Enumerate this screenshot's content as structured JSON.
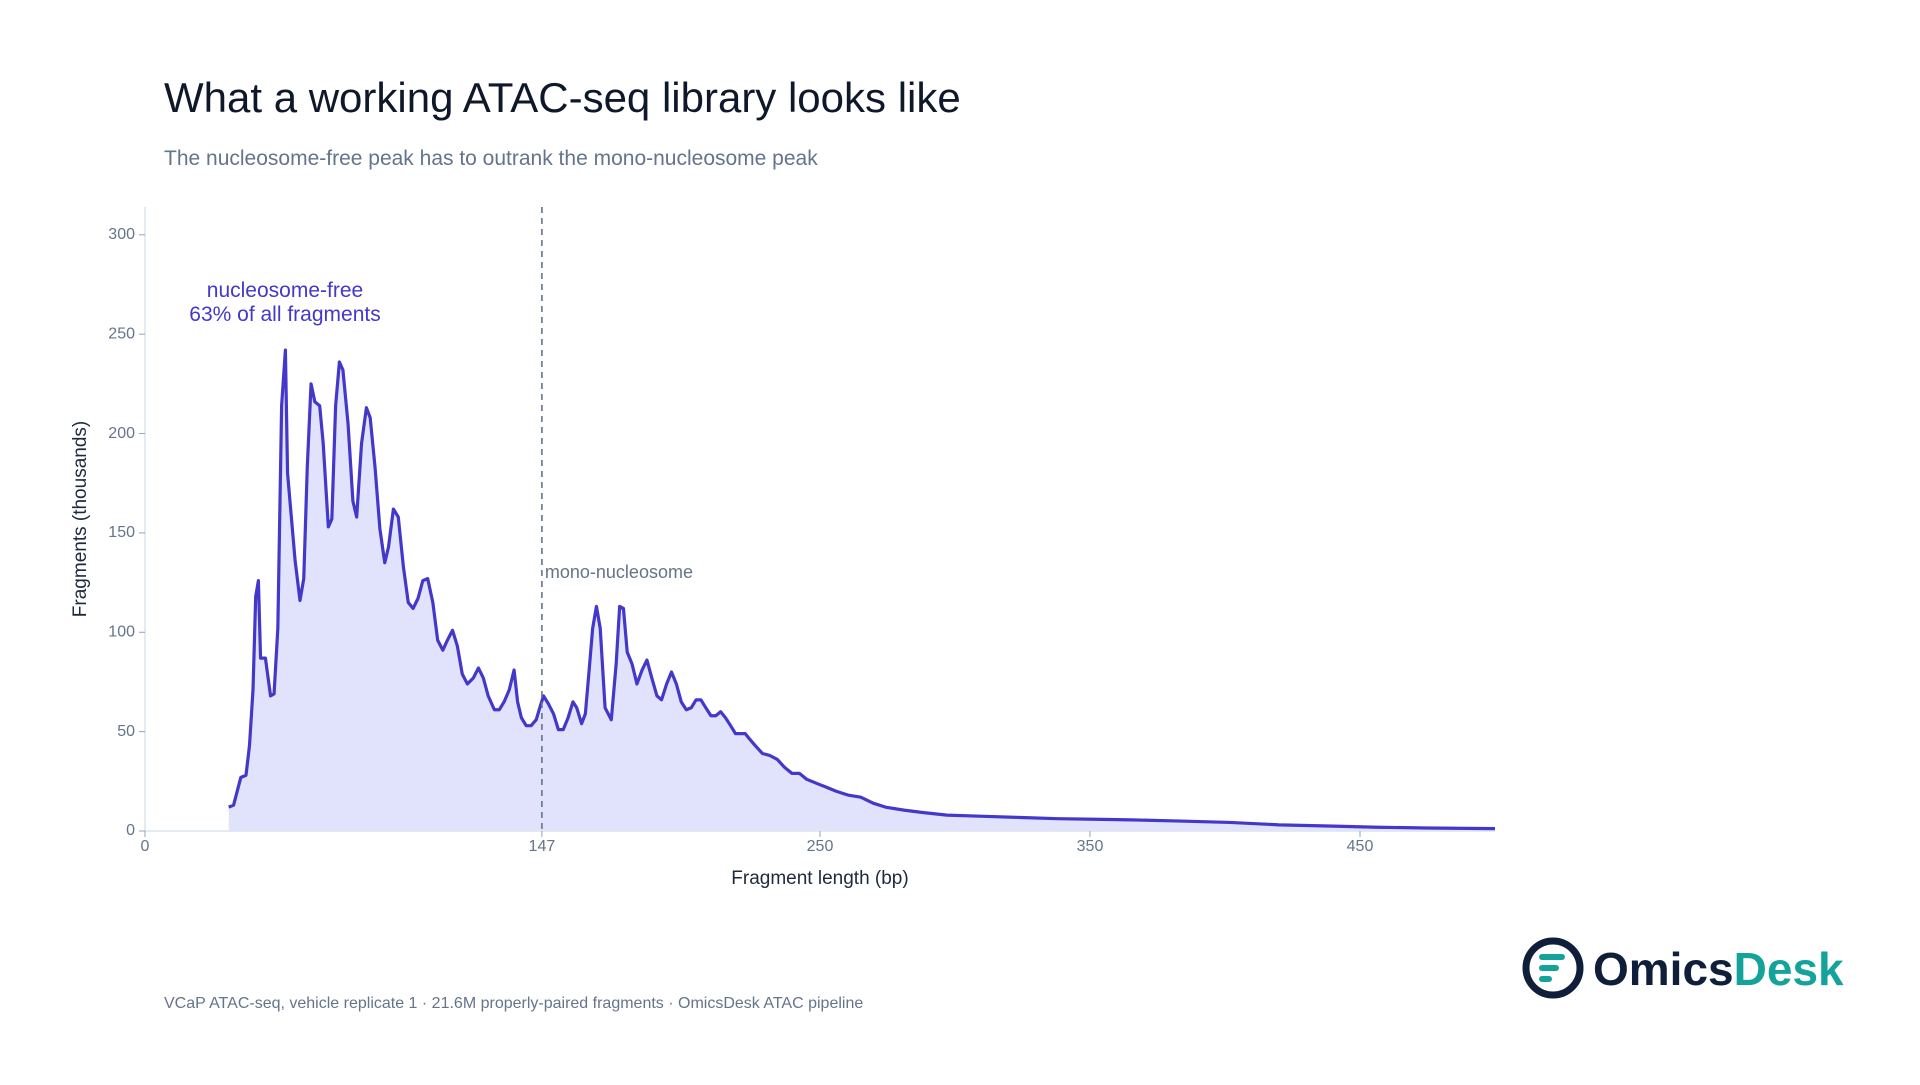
{
  "chart_data": {
    "type": "area",
    "title": "What a working ATAC-seq library looks like",
    "subtitle": "The nucleosome-free peak has to outrank the mono-nucleosome peak",
    "x_label": "Fragment length (bp)",
    "y_label": "Fragments (thousands)",
    "xlim": [
      0,
      500
    ],
    "ylim": [
      0,
      314
    ],
    "xticks": [
      0,
      147,
      250,
      350,
      450
    ],
    "yticks": [
      0,
      50,
      100,
      150,
      200,
      250,
      300
    ],
    "grid": false,
    "x": [
      31,
      32.8,
      35.5,
      37.4,
      38.7,
      40,
      41,
      42,
      42.8,
      44.6,
      46.5,
      47.8,
      49.2,
      50.6,
      52,
      52.8,
      54.2,
      55.6,
      57.4,
      58.8,
      60.1,
      61.5,
      62.9,
      64.7,
      66,
      67.9,
      69.2,
      70.6,
      72,
      73.3,
      75.2,
      77,
      78.4,
      80.2,
      82,
      83.4,
      85.2,
      87,
      88.8,
      90.2,
      92,
      93.8,
      95.7,
      97.5,
      99.3,
      101.1,
      102.9,
      104.7,
      106.6,
      108.4,
      110.3,
      112,
      113.9,
      115.7,
      117.5,
      119.4,
      121.6,
      123.5,
      125.3,
      127.1,
      129.4,
      131.2,
      133,
      134.9,
      136.7,
      138,
      139.4,
      141.2,
      143,
      144.9,
      146.2,
      147.6,
      149.4,
      151.3,
      153.1,
      154.9,
      156.7,
      158.5,
      159.9,
      161.7,
      163.1,
      164.5,
      165.8,
      167.2,
      168.6,
      170.4,
      172.7,
      174.5,
      175.8,
      177.2,
      178.6,
      180.4,
      182.2,
      184.1,
      185.9,
      187.7,
      189.6,
      191.3,
      193.2,
      195,
      196.8,
      198.6,
      200.5,
      202.3,
      204.1,
      205.9,
      207.7,
      209.6,
      211.4,
      213.2,
      215,
      216.9,
      218.7,
      220.5,
      222.3,
      224.1,
      226,
      228.7,
      231.4,
      234.2,
      236.9,
      239.6,
      242.4,
      245.1,
      248.7,
      252.4,
      256,
      260.6,
      265.1,
      269.7,
      274.3,
      281.1,
      288,
      297,
      310.7,
      324.4,
      338,
      351.7,
      365.4,
      383.6,
      401.8,
      420,
      438.3,
      456.5,
      474.7,
      500
    ],
    "series": [
      {
        "name": "Fragments",
        "color": "#4338ca",
        "fill": "#e0e3fb",
        "values": [
          12,
          13,
          27,
          28,
          43,
          71,
          118,
          126,
          87,
          87,
          68,
          69,
          102,
          214,
          242,
          180,
          158,
          136,
          116,
          127,
          183,
          225,
          216,
          214,
          195,
          153,
          157,
          214,
          236,
          232,
          205,
          166,
          158,
          195,
          213,
          208,
          183,
          152,
          135,
          143,
          162,
          158,
          133,
          115,
          112,
          117,
          126,
          127,
          115,
          96,
          91,
          96,
          101,
          93,
          79,
          74,
          77,
          82,
          77,
          68,
          61,
          61,
          65,
          71,
          81,
          65,
          57,
          53,
          53,
          56,
          62,
          68,
          64,
          59,
          51,
          51,
          57,
          65,
          62,
          54,
          59,
          81,
          102,
          113,
          102,
          62,
          56,
          84,
          113,
          112,
          90,
          84,
          74,
          81,
          86,
          77,
          68,
          66,
          74,
          80,
          74,
          65,
          61,
          62,
          66,
          66,
          62,
          58,
          58,
          60,
          57,
          53,
          49,
          49,
          49,
          46,
          43,
          39,
          38,
          36,
          32,
          29,
          29,
          26,
          24,
          22,
          20,
          18,
          17,
          14,
          12,
          10.5,
          9.3,
          8,
          7.4,
          6.8,
          6.2,
          5.9,
          5.6,
          5,
          4.3,
          3.1,
          2.5,
          1.9,
          1.5,
          1.2
        ]
      }
    ],
    "annotation": {
      "lines": [
        "nucleosome-free",
        "63% of all fragments"
      ],
      "color": "#4338ca"
    },
    "vline": {
      "x": 147,
      "label": "mono-nucleosome"
    },
    "footer": "VCaP ATAC-seq, vehicle replicate 1 · 21.6M properly-paired fragments · OmicsDesk ATAC pipeline",
    "brand": {
      "part1": "Omics",
      "part2": "Desk"
    }
  }
}
